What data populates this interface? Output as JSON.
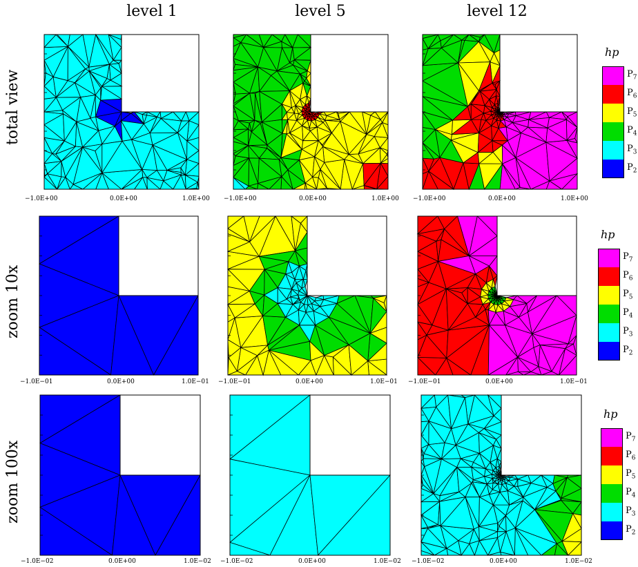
{
  "columns": [
    "level 1",
    "level 5",
    "level 12"
  ],
  "rows": [
    "total view",
    "zoom 10x",
    "zoom 100x"
  ],
  "ticks": [
    [
      "-1.0E+00",
      "0.0E+00",
      "1.0E+00"
    ],
    [
      "-1.0E-01",
      "0.0E+00",
      "1.0E-01"
    ],
    [
      "-1.0E-02",
      "0.0E+00",
      "1.0E-02"
    ]
  ],
  "legend": {
    "title": "hp",
    "items": [
      {
        "base": "P",
        "sub": "7",
        "color": "#ff00ff"
      },
      {
        "base": "P",
        "sub": "6",
        "color": "#ff0000"
      },
      {
        "base": "P",
        "sub": "5",
        "color": "#ffff00"
      },
      {
        "base": "P",
        "sub": "4",
        "color": "#00dd00"
      },
      {
        "base": "P",
        "sub": "3",
        "color": "#00ffff"
      },
      {
        "base": "P",
        "sub": "2",
        "color": "#0000ff"
      }
    ]
  },
  "panels": [
    [
      "cyan-mesh-blue-corner",
      "green-yellow-mesh",
      "multi-order-mesh"
    ],
    [
      "blue-coarse",
      "yellow-green-cyan-mesh",
      "red-magenta-mesh"
    ],
    [
      "blue-coarse",
      "cyan-coarse",
      "cyan-refined-mesh"
    ]
  ]
}
